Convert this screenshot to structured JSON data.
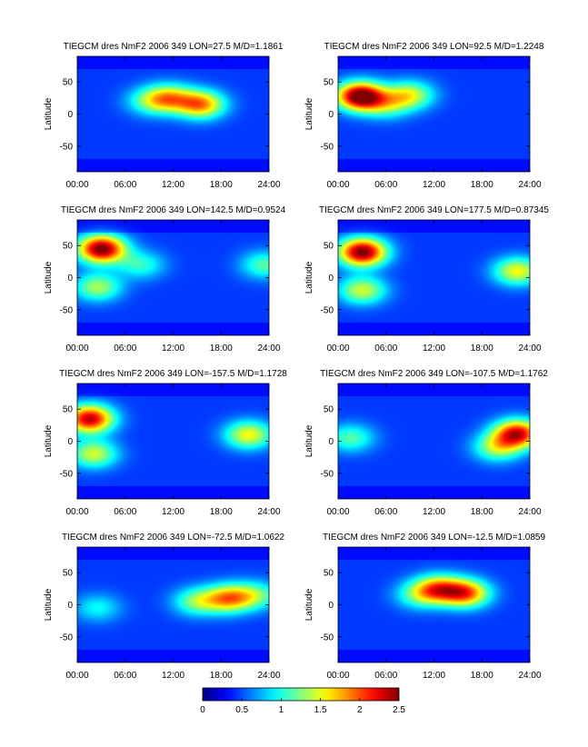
{
  "chart_data": {
    "type": "heatmap",
    "colormap": "jet",
    "colorbar": {
      "range": [
        0,
        2.5
      ],
      "ticks": [
        "0",
        "0.5",
        "1",
        "1.5",
        "2",
        "2.5"
      ]
    },
    "xticks": [
      "00:00",
      "06:00",
      "12:00",
      "18:00",
      "24:00"
    ],
    "xlim_hours": [
      0,
      24
    ],
    "yticks": [
      "50",
      "0",
      "-50"
    ],
    "ylim_deg": [
      -90,
      90
    ],
    "ylabel": "Latitude",
    "panels": [
      {
        "title": "TIEGCM dres NmF2 2006 349 LON=27.5 M/D=1.1861",
        "blobs": [
          {
            "hour": 11.5,
            "lat": 25,
            "amp": 1.1
          },
          {
            "hour": 15.5,
            "lat": 15,
            "amp": 1.4
          },
          {
            "hour": 9,
            "lat": 20,
            "amp": 0.6
          }
        ]
      },
      {
        "title": "TIEGCM dres NmF2 2006 349 LON=92.5 M/D=1.2248",
        "blobs": [
          {
            "hour": 2.7,
            "lat": 28,
            "amp": 2.2
          },
          {
            "hour": 9,
            "lat": 30,
            "amp": 1.0
          },
          {
            "hour": 6,
            "lat": 15,
            "amp": 0.7
          }
        ]
      },
      {
        "title": "TIEGCM dres NmF2 2006 349 LON=142.5 M/D=0.9524",
        "blobs": [
          {
            "hour": 3,
            "lat": 45,
            "amp": 2.1
          },
          {
            "hour": 2.5,
            "lat": -15,
            "amp": 0.9
          },
          {
            "hour": 8,
            "lat": 20,
            "amp": 0.6
          },
          {
            "hour": 23.5,
            "lat": 20,
            "amp": 0.7
          }
        ]
      },
      {
        "title": "TIEGCM dres NmF2 2006 349 LON=177.5 M/D=0.87345",
        "blobs": [
          {
            "hour": 3,
            "lat": 40,
            "amp": 2.1
          },
          {
            "hour": 3,
            "lat": -20,
            "amp": 1.0
          },
          {
            "hour": 22.5,
            "lat": 10,
            "amp": 1.1
          }
        ]
      },
      {
        "title": "TIEGCM dres NmF2 2006 349 LON=-157.5 M/D=1.1728",
        "blobs": [
          {
            "hour": 1.5,
            "lat": 35,
            "amp": 1.9
          },
          {
            "hour": 2,
            "lat": -20,
            "amp": 1.0
          },
          {
            "hour": 21.5,
            "lat": 10,
            "amp": 1.1
          }
        ]
      },
      {
        "title": "TIEGCM dres NmF2 2006 349 LON=-107.5 M/D=1.1762",
        "blobs": [
          {
            "hour": 22.5,
            "lat": 12,
            "amp": 1.8
          },
          {
            "hour": 20,
            "lat": -10,
            "amp": 0.9
          },
          {
            "hour": 1.5,
            "lat": 5,
            "amp": 0.7
          }
        ]
      },
      {
        "title": "TIEGCM dres NmF2 2006 349 LON=-72.5 M/D=1.0622",
        "blobs": [
          {
            "hour": 19,
            "lat": 10,
            "amp": 1.3
          },
          {
            "hour": 15,
            "lat": 5,
            "amp": 0.8
          },
          {
            "hour": 22.5,
            "lat": 15,
            "amp": 0.7
          },
          {
            "hour": 2.5,
            "lat": -5,
            "amp": 0.5
          }
        ]
      },
      {
        "title": "TIEGCM dres NmF2 2006 349 LON=-12.5 M/D=1.0859",
        "blobs": [
          {
            "hour": 12.5,
            "lat": 25,
            "amp": 1.3
          },
          {
            "hour": 16,
            "lat": 18,
            "amp": 1.5
          },
          {
            "hour": 10,
            "lat": 15,
            "amp": 0.6
          }
        ]
      }
    ]
  }
}
